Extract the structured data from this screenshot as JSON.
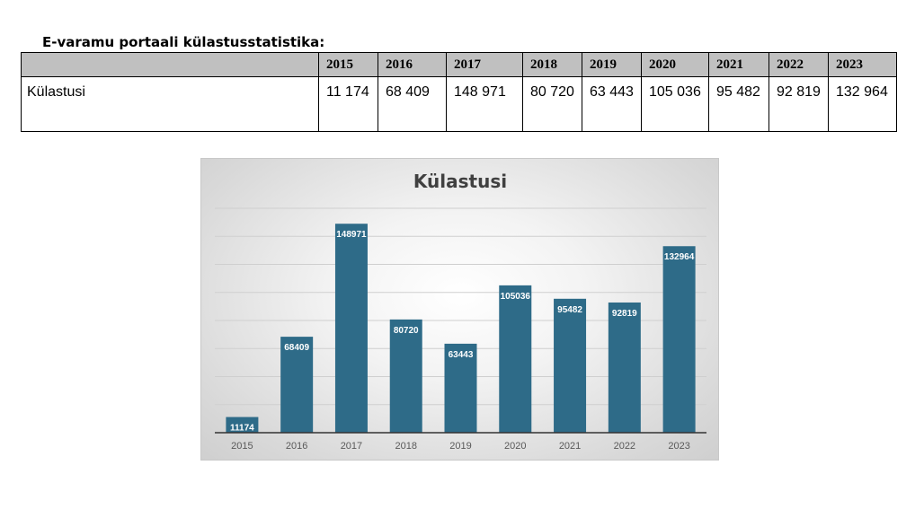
{
  "heading": "E-varamu portaali külastusstatistika:",
  "table": {
    "columns": [
      "2015",
      "2016",
      "2017",
      "2018",
      "2019",
      "2020",
      "2021",
      "2022",
      "2023"
    ],
    "row_label": "Külastusi",
    "cells": [
      "11 174",
      "68 409",
      "148 971",
      "80 720",
      "63 443",
      "105 036",
      "95 482",
      "92 819",
      "132 964"
    ]
  },
  "chart_data": {
    "type": "bar",
    "title": "Külastusi",
    "categories": [
      "2015",
      "2016",
      "2017",
      "2018",
      "2019",
      "2020",
      "2021",
      "2022",
      "2023"
    ],
    "values": [
      11174,
      68409,
      148971,
      80720,
      63443,
      105036,
      95482,
      92819,
      132964
    ],
    "data_labels": [
      "11174",
      "68409",
      "148971",
      "80720",
      "63443",
      "105036",
      "95482",
      "92819",
      "132964"
    ],
    "xlabel": "",
    "ylabel": "",
    "ylim": [
      0,
      160000
    ],
    "grid": true,
    "legend": "none",
    "colors": {
      "bar": "#2e6b88",
      "label": "#ffffff",
      "title": "#404040",
      "axis": "#595959",
      "gridline": "#cfcfcf"
    }
  }
}
